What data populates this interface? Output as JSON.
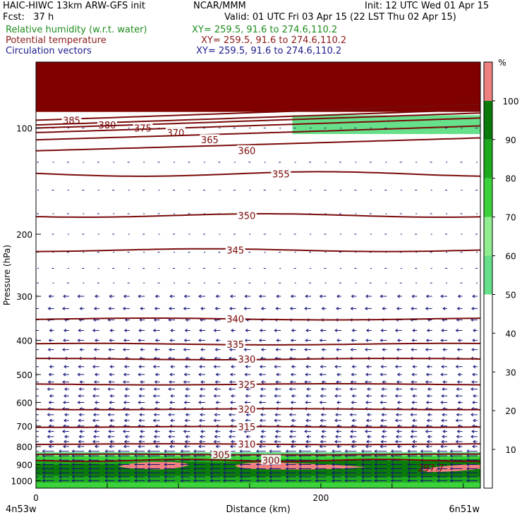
{
  "header": {
    "model": "HAIC-HIWC 13km ARW-GFS init",
    "org": "NCAR/MMM",
    "init": "Init: 12 UTC Wed 01 Apr 15",
    "fcst": "Fcst:   37 h",
    "valid": "Valid: 01 UTC Fri 03 Apr 15 (22 LST Thu 02 Apr 15)"
  },
  "fields": [
    {
      "name": "Relative humidity (w.r.t. water)",
      "xy": "XY= 259.5, 91.6 to 274.6,110.2",
      "color": "#1e8c1e"
    },
    {
      "name": "Potential temperature",
      "xy": "XY= 259.5, 91.6 to 274.6,110.2",
      "color": "#8b1a1a"
    },
    {
      "name": "Circulation vectors",
      "xy": "XY= 259.5, 91.6 to 274.6,110.2",
      "color": "#1a1a8c"
    }
  ],
  "colors": {
    "theta_contour": "#7a0a0a",
    "vector": "#14147a",
    "rh_50_60": "#66e08a",
    "rh_60_70": "#90ee90",
    "rh_70_80": "#3cd23c",
    "rh_80_90": "#1eaa1e",
    "rh_90_100": "#0a7a0a",
    "rh_100_plus": "#f08080",
    "top_band": "#800000"
  },
  "chart_data": {
    "type": "cross-section",
    "xlabel": "Distance (km)",
    "ylabel": "Pressure (hPa)",
    "x_ticks": [
      0,
      200
    ],
    "xlim": [
      0,
      312
    ],
    "y_ticks": [
      100,
      200,
      300,
      400,
      500,
      600,
      700,
      800,
      900,
      1000
    ],
    "ylim": [
      1050,
      65
    ],
    "y_scale": "log-pressure",
    "left_endpoint": "4n53w",
    "right_endpoint": "6n51w",
    "colorbar": {
      "unit": "%",
      "ticks": [
        10,
        20,
        30,
        40,
        50,
        60,
        70,
        80,
        90,
        100
      ],
      "bands": [
        {
          "from": 50,
          "to": 60,
          "color": "#66e08a"
        },
        {
          "from": 60,
          "to": 70,
          "color": "#90ee90"
        },
        {
          "from": 70,
          "to": 80,
          "color": "#3cd23c"
        },
        {
          "from": 80,
          "to": 90,
          "color": "#1eaa1e"
        },
        {
          "from": 90,
          "to": 100,
          "color": "#0a7a0a"
        },
        {
          "from": 100,
          "to": 110,
          "color": "#f08080"
        }
      ]
    },
    "theta_contours": [
      {
        "value": 385,
        "label_x": 25,
        "p": 95
      },
      {
        "value": 380,
        "label_x": 50,
        "p": 98
      },
      {
        "value": 375,
        "label_x": 75,
        "p": 100
      },
      {
        "value": 370,
        "label_x": 98,
        "p": 103
      },
      {
        "value": 365,
        "label_x": 122,
        "p": 108
      },
      {
        "value": 360,
        "label_x": 148,
        "p": 116
      },
      {
        "value": 355,
        "label_x": 172,
        "p": 135
      },
      {
        "value": 350,
        "label_x": 148,
        "p": 177
      },
      {
        "value": 345,
        "label_x": 140,
        "p": 222
      },
      {
        "value": 340,
        "label_x": 140,
        "p": 348
      },
      {
        "value": 335,
        "label_x": 140,
        "p": 410
      },
      {
        "value": 330,
        "label_x": 148,
        "p": 452
      },
      {
        "value": 325,
        "label_x": 148,
        "p": 533
      },
      {
        "value": 320,
        "label_x": 148,
        "p": 627
      },
      {
        "value": 315,
        "label_x": 148,
        "p": 704
      },
      {
        "value": 310,
        "label_x": 148,
        "p": 788
      },
      {
        "value": 305,
        "label_x": 130,
        "p": 843
      },
      {
        "value": 300,
        "label_x": 165,
        "p": 876
      }
    ],
    "annotation": "297.7"
  }
}
